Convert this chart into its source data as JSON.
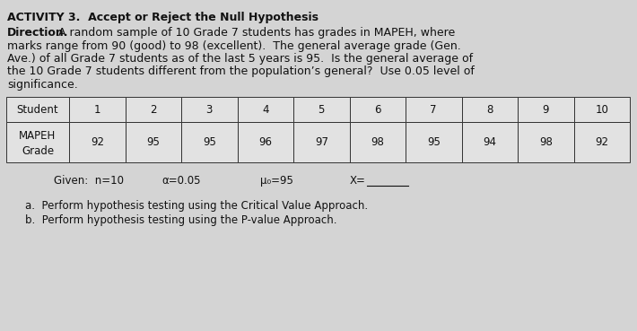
{
  "title": "ACTIVITY 3.  Accept or Reject the Null Hypothesis",
  "direction_bold": "Direction.",
  "direction_rest": " A random sample of 10 Grade 7 students has grades in MAPEH, where marks range from 90 (good) to 98 (excellent).  The general average grade (Gen. Ave.) of all Grade 7 students as of the last 5 years is 95.  Is the general average of the 10 Grade 7 students different from the population’s general?  Use 0.05 level of significance.",
  "direction_lines": [
    " A random sample of 10 Grade 7 students has grades in MAPEH, where",
    "marks range from 90 (good) to 98 (excellent).  The general average grade (Gen.",
    "Ave.) of all Grade 7 students as of the last 5 years is 95.  Is the general average of",
    "the 10 Grade 7 students different from the population’s general?  Use 0.05 level of",
    "significance."
  ],
  "table_headers": [
    "Student",
    "1",
    "2",
    "3",
    "4",
    "5",
    "6",
    "7",
    "8",
    "9",
    "10"
  ],
  "row1_label": "MAPEH",
  "row1_label2": "Grade",
  "row1_values": [
    "92",
    "95",
    "95",
    "96",
    "97",
    "98",
    "95",
    "94",
    "98",
    "92"
  ],
  "item_a": "a.  Perform hypothesis testing using the Critical Value Approach.",
  "item_b": "b.  Perform hypothesis testing using the P-value Approach.",
  "bg_color": "#d4d4d4",
  "text_color": "#111111",
  "cell_color": "#e2e2e2"
}
